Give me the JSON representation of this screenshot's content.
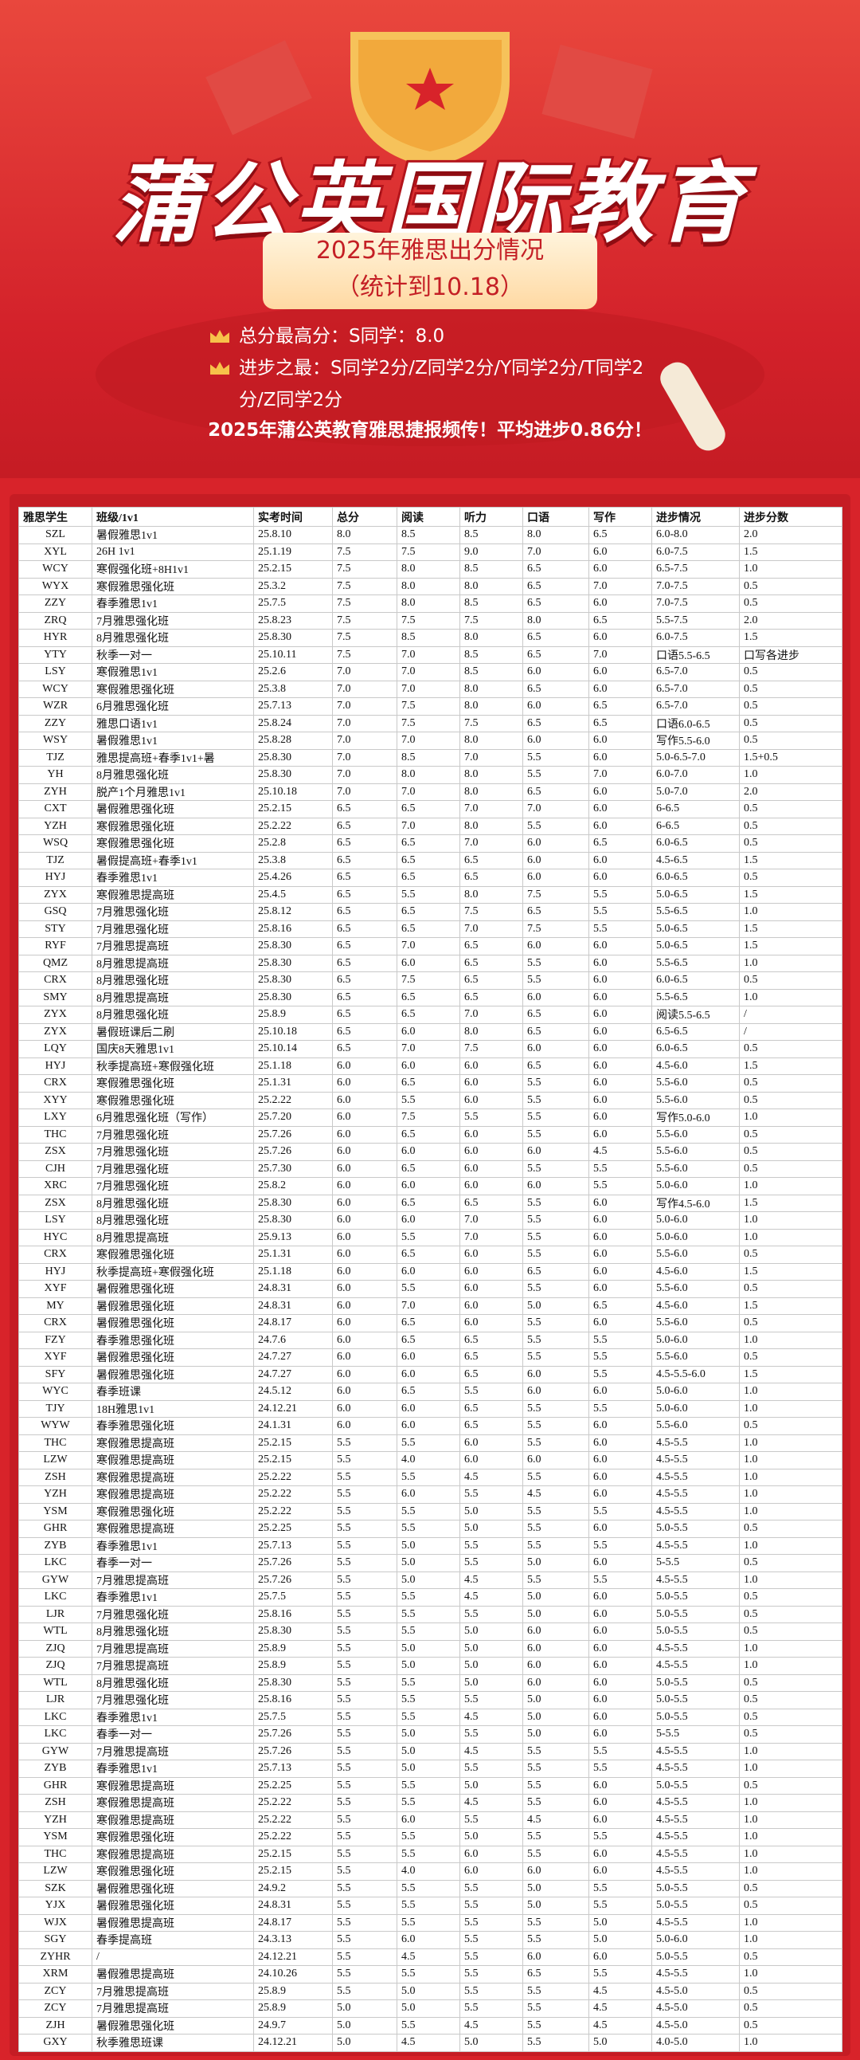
{
  "header": {
    "title": "蒲公英国际教育",
    "subtitle": [
      "2025年雅思出分情况",
      "（统计到10.18）"
    ],
    "stats": [
      "总分最高分：S同学：8.0",
      "进步之最：S同学2分/Z同学2分/Y同学2分/T同学2分/Z同学2分"
    ],
    "slogan": "2025年蒲公英教育雅思捷报频传！平均进步0.86分！"
  },
  "table": {
    "columns": [
      "雅思学生",
      "班级/1v1",
      "实考时间",
      "总分",
      "阅读",
      "听力",
      "口语",
      "写作",
      "进步情况",
      "进步分数"
    ],
    "rows": [
      [
        "SZL",
        "暑假雅思1v1",
        "25.8.10",
        "8.0",
        "8.5",
        "8.5",
        "8.0",
        "6.5",
        "6.0-8.0",
        "2.0"
      ],
      [
        "XYL",
        "26H 1v1",
        "25.1.19",
        "7.5",
        "7.5",
        "9.0",
        "7.0",
        "6.0",
        "6.0-7.5",
        "1.5"
      ],
      [
        "WCY",
        "寒假强化班+8H1v1",
        "25.2.15",
        "7.5",
        "8.0",
        "8.5",
        "6.5",
        "6.0",
        "6.5-7.5",
        "1.0"
      ],
      [
        "WYX",
        "寒假雅思强化班",
        "25.3.2",
        "7.5",
        "8.0",
        "8.0",
        "6.5",
        "7.0",
        "7.0-7.5",
        "0.5"
      ],
      [
        "ZZY",
        "春季雅思1v1",
        "25.7.5",
        "7.5",
        "8.0",
        "8.5",
        "6.5",
        "6.0",
        "7.0-7.5",
        "0.5"
      ],
      [
        "ZRQ",
        "7月雅思强化班",
        "25.8.23",
        "7.5",
        "7.5",
        "7.5",
        "8.0",
        "6.5",
        "5.5-7.5",
        "2.0"
      ],
      [
        "HYR",
        "8月雅思强化班",
        "25.8.30",
        "7.5",
        "8.5",
        "8.0",
        "6.5",
        "6.0",
        "6.0-7.5",
        "1.5"
      ],
      [
        "YTY",
        "秋季一对一",
        "25.10.11",
        "7.5",
        "7.0",
        "8.5",
        "6.5",
        "7.0",
        "口语5.5-6.5",
        "口写各进步"
      ],
      [
        "LSY",
        "寒假雅思1v1",
        "25.2.6",
        "7.0",
        "7.0",
        "8.5",
        "6.0",
        "6.0",
        "6.5-7.0",
        "0.5"
      ],
      [
        "WCY",
        "寒假雅思强化班",
        "25.3.8",
        "7.0",
        "7.0",
        "8.0",
        "6.5",
        "6.0",
        "6.5-7.0",
        "0.5"
      ],
      [
        "WZR",
        "6月雅思强化班",
        "25.7.13",
        "7.0",
        "7.5",
        "8.0",
        "6.0",
        "6.5",
        "6.5-7.0",
        "0.5"
      ],
      [
        "ZZY",
        "雅思口语1v1",
        "25.8.24",
        "7.0",
        "7.5",
        "7.5",
        "6.5",
        "6.5",
        "口语6.0-6.5",
        "0.5"
      ],
      [
        "WSY",
        "暑假雅思1v1",
        "25.8.28",
        "7.0",
        "7.0",
        "8.0",
        "6.0",
        "6.0",
        "写作5.5-6.0",
        "0.5"
      ],
      [
        "TJZ",
        "雅思提高班+春季1v1+暑",
        "25.8.30",
        "7.0",
        "8.5",
        "7.0",
        "5.5",
        "6.0",
        "5.0-6.5-7.0",
        "1.5+0.5"
      ],
      [
        "YH",
        "8月雅思强化班",
        "25.8.30",
        "7.0",
        "8.0",
        "8.0",
        "5.5",
        "7.0",
        "6.0-7.0",
        "1.0"
      ],
      [
        "ZYH",
        "脱产1个月雅思1v1",
        "25.10.18",
        "7.0",
        "7.0",
        "8.0",
        "6.5",
        "6.0",
        "5.0-7.0",
        "2.0"
      ],
      [
        "CXT",
        "暑假雅思强化班",
        "25.2.15",
        "6.5",
        "6.5",
        "7.0",
        "7.0",
        "6.0",
        "6-6.5",
        "0.5"
      ],
      [
        "YZH",
        "寒假雅思强化班",
        "25.2.22",
        "6.5",
        "7.0",
        "8.0",
        "5.5",
        "6.0",
        "6-6.5",
        "0.5"
      ],
      [
        "WSQ",
        "寒假雅思强化班",
        "25.2.8",
        "6.5",
        "6.5",
        "7.0",
        "6.0",
        "6.5",
        "6.0-6.5",
        "0.5"
      ],
      [
        "TJZ",
        "暑假提高班+春季1v1",
        "25.3.8",
        "6.5",
        "6.5",
        "6.5",
        "6.0",
        "6.0",
        "4.5-6.5",
        "1.5"
      ],
      [
        "HYJ",
        "春季雅思1v1",
        "25.4.26",
        "6.5",
        "6.5",
        "6.5",
        "6.0",
        "6.0",
        "6.0-6.5",
        "0.5"
      ],
      [
        "ZYX",
        "寒假雅思提高班",
        "25.4.5",
        "6.5",
        "5.5",
        "8.0",
        "7.5",
        "5.5",
        "5.0-6.5",
        "1.5"
      ],
      [
        "GSQ",
        "7月雅思强化班",
        "25.8.12",
        "6.5",
        "6.5",
        "7.5",
        "6.5",
        "5.5",
        "5.5-6.5",
        "1.0"
      ],
      [
        "STY",
        "7月雅思强化班",
        "25.8.16",
        "6.5",
        "6.5",
        "7.0",
        "7.5",
        "5.5",
        "5.0-6.5",
        "1.5"
      ],
      [
        "RYF",
        "7月雅思提高班",
        "25.8.30",
        "6.5",
        "7.0",
        "6.5",
        "6.0",
        "6.0",
        "5.0-6.5",
        "1.5"
      ],
      [
        "QMZ",
        "8月雅思提高班",
        "25.8.30",
        "6.5",
        "6.0",
        "6.5",
        "5.5",
        "6.0",
        "5.5-6.5",
        "1.0"
      ],
      [
        "CRX",
        "8月雅思强化班",
        "25.8.30",
        "6.5",
        "7.5",
        "6.5",
        "5.5",
        "6.0",
        "6.0-6.5",
        "0.5"
      ],
      [
        "SMY",
        "8月雅思提高班",
        "25.8.30",
        "6.5",
        "6.5",
        "6.5",
        "6.0",
        "6.0",
        "5.5-6.5",
        "1.0"
      ],
      [
        "ZYX",
        "8月雅思强化班",
        "25.8.9",
        "6.5",
        "6.5",
        "7.0",
        "6.5",
        "6.0",
        "阅读5.5-6.5",
        "/"
      ],
      [
        "ZYX",
        "暑假班课后二刷",
        "25.10.18",
        "6.5",
        "6.0",
        "8.0",
        "6.5",
        "6.0",
        "6.5-6.5",
        "/"
      ],
      [
        "LQY",
        "国庆8天雅思1v1",
        "25.10.14",
        "6.5",
        "7.0",
        "7.5",
        "6.0",
        "6.0",
        "6.0-6.5",
        "0.5"
      ],
      [
        "HYJ",
        "秋季提高班+寒假强化班",
        "25.1.18",
        "6.0",
        "6.0",
        "6.0",
        "6.5",
        "6.0",
        "4.5-6.0",
        "1.5"
      ],
      [
        "CRX",
        "寒假雅思强化班",
        "25.1.31",
        "6.0",
        "6.5",
        "6.0",
        "5.5",
        "6.0",
        "5.5-6.0",
        "0.5"
      ],
      [
        "XYY",
        "寒假雅思强化班",
        "25.2.22",
        "6.0",
        "5.5",
        "6.0",
        "5.5",
        "6.0",
        "5.5-6.0",
        "0.5"
      ],
      [
        "LXY",
        "6月雅思强化班（写作）",
        "25.7.20",
        "6.0",
        "7.5",
        "5.5",
        "5.5",
        "6.0",
        "写作5.0-6.0",
        "1.0"
      ],
      [
        "THC",
        "7月雅思强化班",
        "25.7.26",
        "6.0",
        "6.5",
        "6.0",
        "5.5",
        "6.0",
        "5.5-6.0",
        "0.5"
      ],
      [
        "ZSX",
        "7月雅思强化班",
        "25.7.26",
        "6.0",
        "6.0",
        "6.0",
        "6.0",
        "4.5",
        "5.5-6.0",
        "0.5"
      ],
      [
        "CJH",
        "7月雅思强化班",
        "25.7.30",
        "6.0",
        "6.5",
        "6.0",
        "5.5",
        "5.5",
        "5.5-6.0",
        "0.5"
      ],
      [
        "XRC",
        "7月雅思强化班",
        "25.8.2",
        "6.0",
        "6.0",
        "6.0",
        "6.0",
        "5.5",
        "5.0-6.0",
        "1.0"
      ],
      [
        "ZSX",
        "8月雅思强化班",
        "25.8.30",
        "6.0",
        "6.5",
        "6.5",
        "5.5",
        "6.0",
        "写作4.5-6.0",
        "1.5"
      ],
      [
        "LSY",
        "8月雅思强化班",
        "25.8.30",
        "6.0",
        "6.0",
        "7.0",
        "5.5",
        "6.0",
        "5.0-6.0",
        "1.0"
      ],
      [
        "HYC",
        "8月雅思提高班",
        "25.9.13",
        "6.0",
        "5.5",
        "7.0",
        "5.5",
        "6.0",
        "5.0-6.0",
        "1.0"
      ],
      [
        "CRX",
        "寒假雅思强化班",
        "25.1.31",
        "6.0",
        "6.5",
        "6.0",
        "5.5",
        "6.0",
        "5.5-6.0",
        "0.5"
      ],
      [
        "HYJ",
        "秋季提高班+寒假强化班",
        "25.1.18",
        "6.0",
        "6.0",
        "6.0",
        "6.5",
        "6.0",
        "4.5-6.0",
        "1.5"
      ],
      [
        "XYF",
        "暑假雅思强化班",
        "24.8.31",
        "6.0",
        "5.5",
        "6.0",
        "5.5",
        "6.0",
        "5.5-6.0",
        "0.5"
      ],
      [
        "MY",
        "暑假雅思强化班",
        "24.8.31",
        "6.0",
        "7.0",
        "6.0",
        "5.0",
        "6.5",
        "4.5-6.0",
        "1.5"
      ],
      [
        "CRX",
        "暑假雅思强化班",
        "24.8.17",
        "6.0",
        "6.5",
        "6.0",
        "5.5",
        "6.0",
        "5.5-6.0",
        "0.5"
      ],
      [
        "FZY",
        "春季雅思强化班",
        "24.7.6",
        "6.0",
        "6.5",
        "6.5",
        "5.5",
        "5.5",
        "5.0-6.0",
        "1.0"
      ],
      [
        "XYF",
        "暑假雅思强化班",
        "24.7.27",
        "6.0",
        "6.0",
        "6.5",
        "5.5",
        "5.5",
        "5.5-6.0",
        "0.5"
      ],
      [
        "SFY",
        "暑假雅思强化班",
        "24.7.27",
        "6.0",
        "6.0",
        "6.5",
        "6.0",
        "5.5",
        "4.5-5.5-6.0",
        "1.5"
      ],
      [
        "WYC",
        "春季班课",
        "24.5.12",
        "6.0",
        "6.5",
        "5.5",
        "6.0",
        "6.0",
        "5.0-6.0",
        "1.0"
      ],
      [
        "TJY",
        "18H雅思1v1",
        "24.12.21",
        "6.0",
        "6.0",
        "6.5",
        "5.5",
        "5.5",
        "5.0-6.0",
        "1.0"
      ],
      [
        "WYW",
        "春季雅思强化班",
        "24.1.31",
        "6.0",
        "6.0",
        "6.5",
        "5.5",
        "6.0",
        "5.5-6.0",
        "0.5"
      ],
      [
        "THC",
        "寒假雅思提高班",
        "25.2.15",
        "5.5",
        "5.5",
        "6.0",
        "5.5",
        "6.0",
        "4.5-5.5",
        "1.0"
      ],
      [
        "LZW",
        "寒假雅思提高班",
        "25.2.15",
        "5.5",
        "4.0",
        "6.0",
        "6.0",
        "6.0",
        "4.5-5.5",
        "1.0"
      ],
      [
        "ZSH",
        "寒假雅思提高班",
        "25.2.22",
        "5.5",
        "5.5",
        "4.5",
        "5.5",
        "6.0",
        "4.5-5.5",
        "1.0"
      ],
      [
        "YZH",
        "寒假雅思提高班",
        "25.2.22",
        "5.5",
        "6.0",
        "5.5",
        "4.5",
        "6.0",
        "4.5-5.5",
        "1.0"
      ],
      [
        "YSM",
        "寒假雅思强化班",
        "25.2.22",
        "5.5",
        "5.5",
        "5.0",
        "5.5",
        "5.5",
        "4.5-5.5",
        "1.0"
      ],
      [
        "GHR",
        "寒假雅思提高班",
        "25.2.25",
        "5.5",
        "5.5",
        "5.0",
        "5.5",
        "6.0",
        "5.0-5.5",
        "0.5"
      ],
      [
        "ZYB",
        "春季雅思1v1",
        "25.7.13",
        "5.5",
        "5.0",
        "5.5",
        "5.5",
        "5.5",
        "4.5-5.5",
        "1.0"
      ],
      [
        "LKC",
        "春季一对一",
        "25.7.26",
        "5.5",
        "5.0",
        "5.5",
        "5.0",
        "6.0",
        "5-5.5",
        "0.5"
      ],
      [
        "GYW",
        "7月雅思提高班",
        "25.7.26",
        "5.5",
        "5.0",
        "4.5",
        "5.5",
        "5.5",
        "4.5-5.5",
        "1.0"
      ],
      [
        "LKC",
        "春季雅思1v1",
        "25.7.5",
        "5.5",
        "5.5",
        "4.5",
        "5.0",
        "6.0",
        "5.0-5.5",
        "0.5"
      ],
      [
        "LJR",
        "7月雅思强化班",
        "25.8.16",
        "5.5",
        "5.5",
        "5.5",
        "5.0",
        "6.0",
        "5.0-5.5",
        "0.5"
      ],
      [
        "WTL",
        "8月雅思强化班",
        "25.8.30",
        "5.5",
        "5.5",
        "5.0",
        "6.0",
        "6.0",
        "5.0-5.5",
        "0.5"
      ],
      [
        "ZJQ",
        "7月雅思提高班",
        "25.8.9",
        "5.5",
        "5.0",
        "5.0",
        "6.0",
        "6.0",
        "4.5-5.5",
        "1.0"
      ],
      [
        "ZJQ",
        "7月雅思提高班",
        "25.8.9",
        "5.5",
        "5.0",
        "5.0",
        "6.0",
        "6.0",
        "4.5-5.5",
        "1.0"
      ],
      [
        "WTL",
        "8月雅思强化班",
        "25.8.30",
        "5.5",
        "5.5",
        "5.0",
        "6.0",
        "6.0",
        "5.0-5.5",
        "0.5"
      ],
      [
        "LJR",
        "7月雅思强化班",
        "25.8.16",
        "5.5",
        "5.5",
        "5.5",
        "5.0",
        "6.0",
        "5.0-5.5",
        "0.5"
      ],
      [
        "LKC",
        "春季雅思1v1",
        "25.7.5",
        "5.5",
        "5.5",
        "4.5",
        "5.0",
        "6.0",
        "5.0-5.5",
        "0.5"
      ],
      [
        "LKC",
        "春季一对一",
        "25.7.26",
        "5.5",
        "5.0",
        "5.5",
        "5.0",
        "6.0",
        "5-5.5",
        "0.5"
      ],
      [
        "GYW",
        "7月雅思提高班",
        "25.7.26",
        "5.5",
        "5.0",
        "4.5",
        "5.5",
        "5.5",
        "4.5-5.5",
        "1.0"
      ],
      [
        "ZYB",
        "春季雅思1v1",
        "25.7.13",
        "5.5",
        "5.0",
        "5.5",
        "5.5",
        "5.5",
        "4.5-5.5",
        "1.0"
      ],
      [
        "GHR",
        "寒假雅思提高班",
        "25.2.25",
        "5.5",
        "5.5",
        "5.0",
        "5.5",
        "6.0",
        "5.0-5.5",
        "0.5"
      ],
      [
        "ZSH",
        "寒假雅思提高班",
        "25.2.22",
        "5.5",
        "5.5",
        "4.5",
        "5.5",
        "6.0",
        "4.5-5.5",
        "1.0"
      ],
      [
        "YZH",
        "寒假雅思提高班",
        "25.2.22",
        "5.5",
        "6.0",
        "5.5",
        "4.5",
        "6.0",
        "4.5-5.5",
        "1.0"
      ],
      [
        "YSM",
        "寒假雅思强化班",
        "25.2.22",
        "5.5",
        "5.5",
        "5.0",
        "5.5",
        "5.5",
        "4.5-5.5",
        "1.0"
      ],
      [
        "THC",
        "寒假雅思提高班",
        "25.2.15",
        "5.5",
        "5.5",
        "6.0",
        "5.5",
        "6.0",
        "4.5-5.5",
        "1.0"
      ],
      [
        "LZW",
        "寒假雅思强化班",
        "25.2.15",
        "5.5",
        "4.0",
        "6.0",
        "6.0",
        "6.0",
        "4.5-5.5",
        "1.0"
      ],
      [
        "SZK",
        "暑假雅思强化班",
        "24.9.2",
        "5.5",
        "5.5",
        "5.5",
        "5.0",
        "5.5",
        "5.0-5.5",
        "0.5"
      ],
      [
        "YJX",
        "暑假雅思强化班",
        "24.8.31",
        "5.5",
        "5.5",
        "5.5",
        "5.0",
        "5.5",
        "5.0-5.5",
        "0.5"
      ],
      [
        "WJX",
        "暑假雅思提高班",
        "24.8.17",
        "5.5",
        "5.5",
        "5.5",
        "5.5",
        "5.0",
        "4.5-5.5",
        "1.0"
      ],
      [
        "SGY",
        "春季提高班",
        "24.3.13",
        "5.5",
        "6.0",
        "5.5",
        "5.5",
        "5.0",
        "5.0-6.0",
        "1.0"
      ],
      [
        "ZYHR",
        "/",
        "24.12.21",
        "5.5",
        "4.5",
        "5.5",
        "6.0",
        "6.0",
        "5.0-5.5",
        "0.5"
      ],
      [
        "XRM",
        "暑假雅思提高班",
        "24.10.26",
        "5.5",
        "5.5",
        "5.5",
        "6.5",
        "5.5",
        "4.5-5.5",
        "1.0"
      ],
      [
        "ZCY",
        "7月雅思提高班",
        "25.8.9",
        "5.5",
        "5.0",
        "5.5",
        "5.5",
        "4.5",
        "4.5-5.0",
        "0.5"
      ],
      [
        "ZCY",
        "7月雅思提高班",
        "25.8.9",
        "5.0",
        "5.0",
        "5.5",
        "5.5",
        "4.5",
        "4.5-5.0",
        "0.5"
      ],
      [
        "ZJH",
        "暑假雅思强化班",
        "24.9.7",
        "5.0",
        "5.5",
        "4.5",
        "5.5",
        "4.5",
        "4.5-5.0",
        "0.5"
      ],
      [
        "GXY",
        "秋季雅思班课",
        "24.12.21",
        "5.0",
        "4.5",
        "5.0",
        "5.5",
        "5.0",
        "4.0-5.0",
        "1.0"
      ]
    ]
  }
}
